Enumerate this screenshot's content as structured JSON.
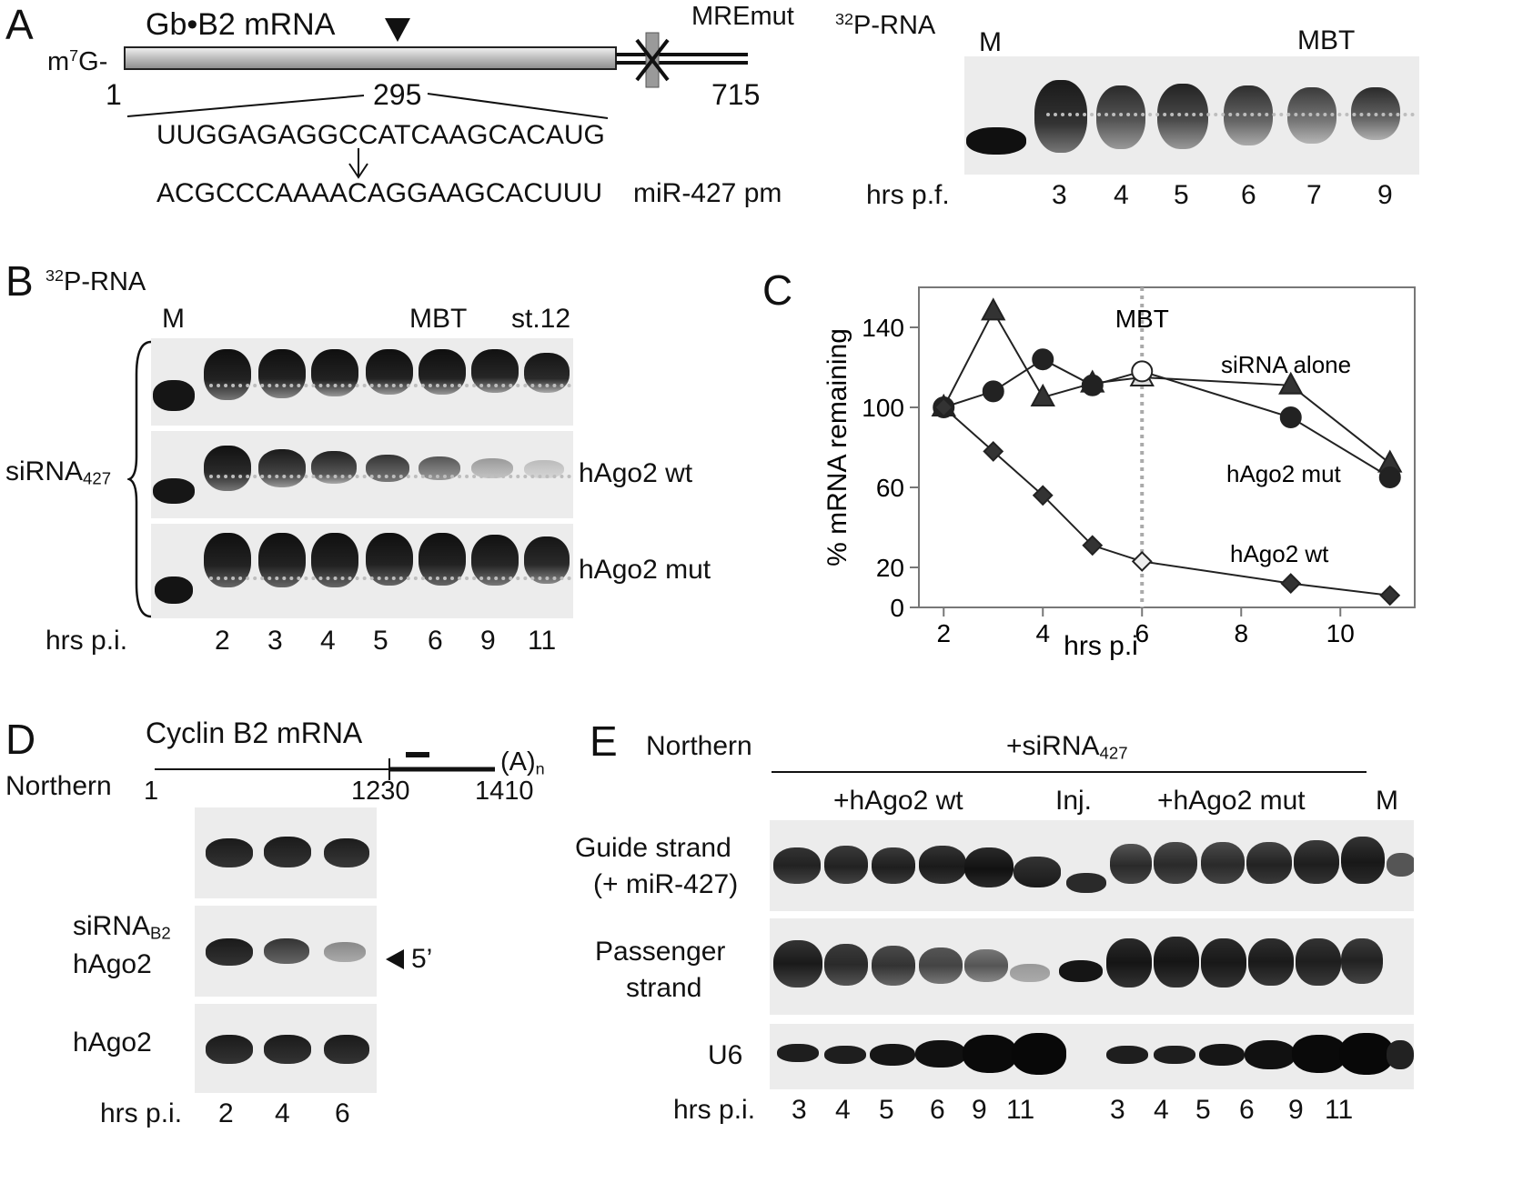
{
  "panelA": {
    "letter": "A",
    "mrna_title": "Gb•B2 mRNA",
    "cap_prefix": "m",
    "cap_sup": "7",
    "cap_suffix": "G-",
    "mre_label": "MREmut",
    "pos_start": "1",
    "pos_site": "295",
    "pos_end": "715",
    "target_seq": "UUGGAGAGGCCATCAAGCACAUG",
    "mirna_seq": "ACGCCCAAAACAGGAAGCACUUU",
    "mirna_name": "miR-427 pm",
    "gel_title_sup": "32",
    "gel_title": "P-RNA",
    "marker": "M",
    "mbt": "MBT",
    "xlabel": "hrs p.f.",
    "lanes": [
      "3",
      "4",
      "5",
      "6",
      "7",
      "9"
    ]
  },
  "panelB": {
    "letter": "B",
    "gel_title_sup": "32",
    "gel_title": "P-RNA",
    "marker": "M",
    "mbt": "MBT",
    "stage": "st.12",
    "group_label": "siRNA",
    "group_sub": "427",
    "row_wt": "hAgo2 wt",
    "row_mut": "hAgo2 mut",
    "xlabel": "hrs p.i.",
    "lanes": [
      "2",
      "3",
      "4",
      "5",
      "6",
      "9",
      "11"
    ]
  },
  "panelC": {
    "letter": "C",
    "ylabel": "% mRNA remaining",
    "xlabel": "hrs p.i",
    "mbt": "MBT",
    "yticks": [
      "140",
      "100",
      "60",
      "20",
      "0"
    ],
    "xticks": [
      "2",
      "4",
      "6",
      "8",
      "10"
    ]
  },
  "chart_data": {
    "type": "line",
    "xlabel": "hrs p.i",
    "ylabel": "% mRNA remaining",
    "xlim": [
      1.5,
      11.5
    ],
    "ylim": [
      0,
      160
    ],
    "yticks": [
      0,
      20,
      60,
      100,
      140
    ],
    "xticks": [
      2,
      4,
      6,
      8,
      10
    ],
    "grid": false,
    "annotation": "MBT",
    "annotation_x": 6,
    "series": [
      {
        "name": "siRNA alone",
        "marker": "triangle",
        "x": [
          2,
          3,
          4,
          5,
          6,
          9,
          11
        ],
        "y": [
          100,
          148,
          105,
          112,
          115,
          111,
          72
        ]
      },
      {
        "name": "hAgo2 mut",
        "marker": "circle",
        "x": [
          2,
          3,
          4,
          5,
          6,
          9,
          11
        ],
        "y": [
          100,
          108,
          124,
          111,
          118,
          95,
          65
        ]
      },
      {
        "name": "hAgo2 wt",
        "marker": "diamond",
        "x": [
          2,
          3,
          4,
          5,
          6,
          9,
          11
        ],
        "y": [
          100,
          78,
          56,
          31,
          23,
          12,
          6
        ]
      }
    ]
  },
  "panelD": {
    "letter": "D",
    "mrna_title": "Cyclin B2 mRNA",
    "polyA": "(A)",
    "polyA_sub": "n",
    "northern": "Northern",
    "pos_start": "1",
    "pos_mid": "1230",
    "pos_end": "1410",
    "row2_line1": "siRNA",
    "row2_sub": "B2",
    "row2_line2": "hAgo2",
    "row3": "hAgo2",
    "arrow_label": "5’",
    "xlabel": "hrs p.i.",
    "lanes": [
      "2",
      "4",
      "6"
    ]
  },
  "panelE": {
    "letter": "E",
    "northern": "Northern",
    "group": "+siRNA",
    "group_sub": "427",
    "wt": "+hAgo2 wt",
    "inj": "Inj.",
    "mut": "+hAgo2 mut",
    "marker": "M",
    "guide1": "Guide strand",
    "guide2": "(+ miR-427)",
    "pass1": "Passenger",
    "pass2": "strand",
    "u6": "U6",
    "xlabel": "hrs p.i.",
    "lanes_wt": [
      "3",
      "4",
      "5",
      "6",
      "9",
      "11"
    ],
    "lanes_mut": [
      "3",
      "4",
      "5",
      "6",
      "9",
      "11"
    ]
  }
}
